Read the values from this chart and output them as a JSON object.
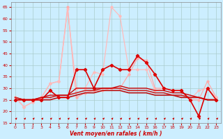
{
  "xlabel": "Vent moyen/en rafales ( km/h )",
  "bg_color": "#cceeff",
  "grid_color": "#aacccc",
  "xlim": [
    -0.5,
    23.5
  ],
  "ylim": [
    15,
    67
  ],
  "yticks": [
    15,
    20,
    25,
    30,
    35,
    40,
    45,
    50,
    55,
    60,
    65
  ],
  "xticks": [
    0,
    1,
    2,
    3,
    4,
    5,
    6,
    7,
    8,
    9,
    10,
    11,
    12,
    13,
    14,
    15,
    16,
    17,
    18,
    19,
    20,
    21,
    22,
    23
  ],
  "series": [
    {
      "x": [
        0,
        1,
        2,
        3,
        4,
        5,
        6,
        7,
        8,
        9,
        10,
        11,
        12,
        13,
        14,
        15,
        16,
        17,
        18,
        19,
        20,
        21,
        22,
        23
      ],
      "y": [
        26,
        22,
        24,
        26,
        32,
        33,
        65,
        26,
        28,
        29,
        29,
        30,
        30,
        36,
        43,
        42,
        30,
        30,
        29,
        29,
        25,
        25,
        33,
        26
      ],
      "color": "#ffaaaa",
      "lw": 0.9,
      "marker": "o",
      "ms": 2.0
    },
    {
      "x": [
        0,
        1,
        2,
        3,
        4,
        5,
        6,
        7,
        8,
        9,
        10,
        11,
        12,
        13,
        14,
        15,
        16,
        17,
        18,
        19,
        20,
        21,
        22,
        23
      ],
      "y": [
        26,
        22,
        24,
        26,
        32,
        33,
        64,
        30,
        30,
        37,
        36,
        65,
        61,
        38,
        38,
        38,
        29,
        30,
        29,
        29,
        25,
        29,
        30,
        26
      ],
      "color": "#ffbbbb",
      "lw": 0.9,
      "marker": "o",
      "ms": 2.0
    },
    {
      "x": [
        0,
        1,
        2,
        3,
        4,
        5,
        6,
        7,
        8,
        9,
        10,
        11,
        12,
        13,
        14,
        15,
        16,
        17,
        18,
        19,
        20,
        21,
        22,
        23
      ],
      "y": [
        26,
        25,
        25,
        25,
        25,
        26,
        26,
        27,
        28,
        28,
        29,
        29,
        29,
        28,
        28,
        28,
        27,
        27,
        27,
        26,
        26,
        26,
        25,
        25
      ],
      "color": "#bb1111",
      "lw": 1.2,
      "marker": null,
      "ms": 0
    },
    {
      "x": [
        0,
        1,
        2,
        3,
        4,
        5,
        6,
        7,
        8,
        9,
        10,
        11,
        12,
        13,
        14,
        15,
        16,
        17,
        18,
        19,
        20,
        21,
        22,
        23
      ],
      "y": [
        26,
        25,
        25,
        26,
        26,
        27,
        27,
        28,
        29,
        29,
        30,
        30,
        30,
        29,
        29,
        29,
        28,
        28,
        27,
        27,
        26,
        26,
        25,
        25
      ],
      "color": "#cc2222",
      "lw": 1.2,
      "marker": null,
      "ms": 0
    },
    {
      "x": [
        0,
        1,
        2,
        3,
        4,
        5,
        6,
        7,
        8,
        9,
        10,
        11,
        12,
        13,
        14,
        15,
        16,
        17,
        18,
        19,
        20,
        21,
        22,
        23
      ],
      "y": [
        25,
        25,
        25,
        25,
        29,
        26,
        26,
        38,
        38,
        30,
        38,
        40,
        38,
        38,
        44,
        41,
        36,
        30,
        29,
        29,
        25,
        18,
        30,
        25
      ],
      "color": "#dd0000",
      "lw": 1.2,
      "marker": "D",
      "ms": 2.2
    },
    {
      "x": [
        0,
        1,
        2,
        3,
        4,
        5,
        6,
        7,
        8,
        9,
        10,
        11,
        12,
        13,
        14,
        15,
        16,
        17,
        18,
        19,
        20,
        21,
        22,
        23
      ],
      "y": [
        25,
        25,
        25,
        26,
        27,
        27,
        27,
        30,
        30,
        30,
        30,
        30,
        31,
        30,
        30,
        30,
        29,
        29,
        28,
        28,
        27,
        26,
        25,
        25
      ],
      "color": "#cc0000",
      "lw": 1.0,
      "marker": null,
      "ms": 0
    }
  ],
  "arrow_color": "#cc0000",
  "figsize": [
    3.2,
    2.0
  ],
  "dpi": 100
}
